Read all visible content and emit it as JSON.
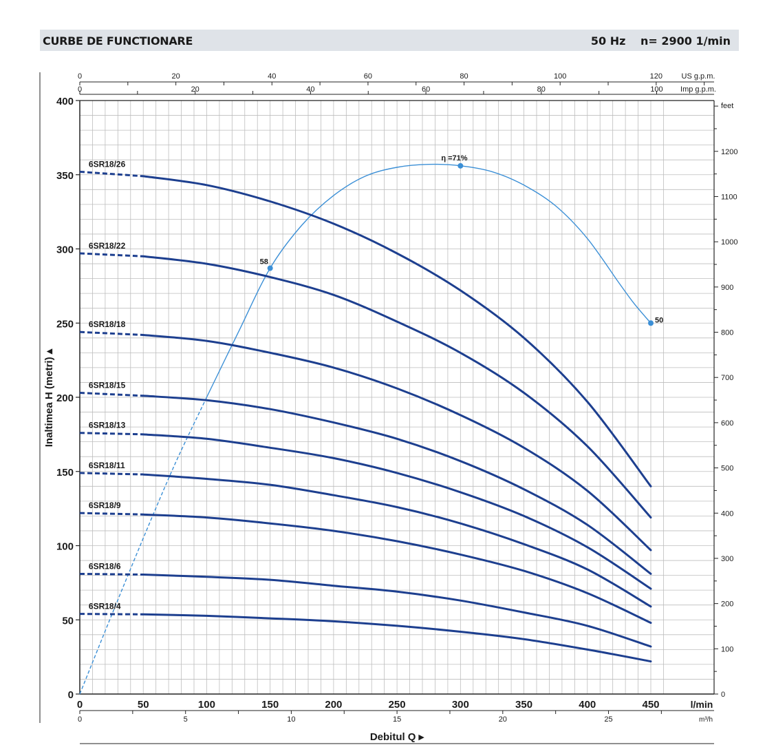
{
  "header": {
    "title": "CURBE DE FUNCTIONARE",
    "frequency": "50 Hz",
    "speed": "n= 2900  1/min"
  },
  "chart_data": {
    "type": "line",
    "title": "",
    "xlabel": "Debitul Q",
    "ylabel": "Inaltimea H (metri)",
    "x_unit": "l/min",
    "xlim": [
      0,
      470
    ],
    "ylim": [
      0,
      400
    ],
    "x_ticks": [
      0,
      50,
      100,
      150,
      200,
      250,
      300,
      350,
      400,
      450
    ],
    "y_ticks": [
      0,
      50,
      100,
      150,
      200,
      250,
      300,
      350,
      400
    ],
    "grid": true,
    "secondary_axes": {
      "us_gpm": {
        "label": "US g.p.m.",
        "ticks": [
          0,
          20,
          40,
          60,
          80,
          100,
          120
        ]
      },
      "imp_gpm": {
        "label": "Imp g.p.m.",
        "ticks": [
          0,
          20,
          40,
          60,
          80,
          100
        ]
      },
      "m3h": {
        "label": "m³/h",
        "ticks": [
          0,
          5,
          10,
          15,
          20,
          25
        ]
      },
      "feet": {
        "label": "feet",
        "ticks": [
          0,
          100,
          200,
          300,
          400,
          500,
          600,
          700,
          800,
          900,
          1000,
          1100,
          1200
        ]
      }
    },
    "series": [
      {
        "name": "6SR18/26",
        "x": [
          0,
          50,
          100,
          150,
          200,
          250,
          300,
          350,
          400,
          450
        ],
        "y": [
          352,
          349,
          343,
          332,
          317,
          297,
          272,
          240,
          197,
          140
        ]
      },
      {
        "name": "6SR18/22",
        "x": [
          0,
          50,
          100,
          150,
          200,
          250,
          300,
          350,
          400,
          450
        ],
        "y": [
          297,
          295,
          290,
          281,
          269,
          251,
          230,
          203,
          167,
          119
        ]
      },
      {
        "name": "6SR18/18",
        "x": [
          0,
          50,
          100,
          150,
          200,
          250,
          300,
          350,
          400,
          450
        ],
        "y": [
          244,
          242,
          238,
          230,
          220,
          206,
          188,
          166,
          137,
          97
        ]
      },
      {
        "name": "6SR18/15",
        "x": [
          0,
          50,
          100,
          150,
          200,
          250,
          300,
          350,
          400,
          450
        ],
        "y": [
          203,
          201,
          198,
          192,
          183,
          172,
          157,
          138,
          114,
          81
        ]
      },
      {
        "name": "6SR18/13",
        "x": [
          0,
          50,
          100,
          150,
          200,
          250,
          300,
          350,
          400,
          450
        ],
        "y": [
          176,
          175,
          172,
          166,
          159,
          149,
          136,
          120,
          99,
          71
        ]
      },
      {
        "name": "6SR18/11",
        "x": [
          0,
          50,
          100,
          150,
          200,
          250,
          300,
          350,
          400,
          450
        ],
        "y": [
          149,
          148,
          145,
          141,
          134,
          126,
          115,
          101,
          84,
          59
        ]
      },
      {
        "name": "6SR18/9",
        "x": [
          0,
          50,
          100,
          150,
          200,
          250,
          300,
          350,
          400,
          450
        ],
        "y": [
          122,
          121,
          119,
          115,
          110,
          103,
          94,
          83,
          68,
          48
        ]
      },
      {
        "name": "6SR18/6",
        "x": [
          0,
          50,
          100,
          150,
          200,
          250,
          300,
          350,
          400,
          450
        ],
        "y": [
          81,
          80.5,
          79,
          77,
          73,
          69,
          63,
          55,
          46,
          32
        ]
      },
      {
        "name": "6SR18/4",
        "x": [
          0,
          50,
          100,
          150,
          200,
          250,
          300,
          350,
          400,
          450
        ],
        "y": [
          54,
          53.7,
          52.7,
          51,
          49,
          46,
          42,
          37,
          30,
          22
        ]
      }
    ],
    "efficiency_curve": {
      "x": [
        0,
        25,
        50,
        75,
        100,
        125,
        150,
        175,
        200,
        225,
        250,
        275,
        300,
        325,
        350,
        375,
        400,
        425,
        437,
        450
      ],
      "y": [
        0,
        53,
        105,
        155,
        200,
        244,
        287,
        316,
        336,
        349,
        355,
        357,
        356,
        352,
        343,
        329,
        307,
        277,
        263,
        250
      ],
      "markers": [
        {
          "label": "58",
          "x": 150,
          "y": 287
        },
        {
          "label": "η =71%",
          "x": 300,
          "y": 356
        },
        {
          "label": "50",
          "x": 450,
          "y": 250
        }
      ]
    }
  }
}
